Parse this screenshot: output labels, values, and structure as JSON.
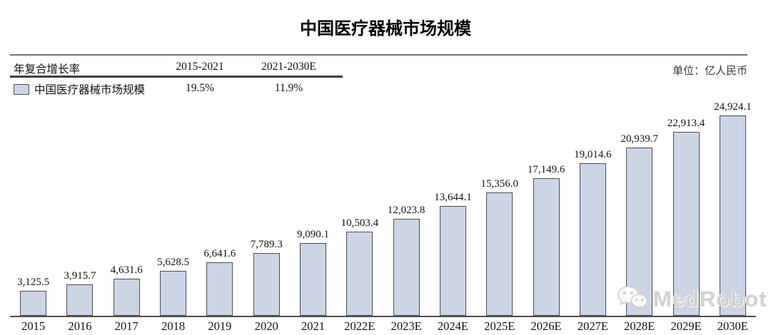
{
  "page": {
    "title": "中国医疗器械市场规模",
    "unit_label": "单位：亿人民币"
  },
  "cagr_table": {
    "row_header": "年复合增长率",
    "period1": "2015-2021",
    "period2": "2021-2030E",
    "series_label": "中国医疗器械市场规模",
    "cagr1": "19.5%",
    "cagr2": "11.9%"
  },
  "watermark": {
    "icon": "wechat-icon",
    "text": "MedRobot"
  },
  "chart_data": {
    "type": "bar",
    "title": "中国医疗器械市场规模",
    "unit": "亿人民币",
    "legend": [
      "中国医疗器械市场规模"
    ],
    "legend_position": "top-left",
    "grid": false,
    "ylim": [
      0,
      26000
    ],
    "value_label_position": "above-bar",
    "categories": [
      "2015",
      "2016",
      "2017",
      "2018",
      "2019",
      "2020",
      "2021",
      "2022E",
      "2023E",
      "2024E",
      "2025E",
      "2026E",
      "2027E",
      "2028E",
      "2029E",
      "2030E"
    ],
    "values": [
      3125.5,
      3915.7,
      4631.6,
      5628.5,
      6641.6,
      7789.3,
      9090.1,
      10503.4,
      12023.8,
      13644.1,
      15356.0,
      17149.6,
      19014.6,
      20939.7,
      22913.4,
      24924.1
    ],
    "value_labels": [
      "3,125.5",
      "3,915.7",
      "4,631.6",
      "5,628.5",
      "6,641.6",
      "7,789.3",
      "9,090.1",
      "10,503.4",
      "12,023.8",
      "13,644.1",
      "15,356.0",
      "17,149.6",
      "19,014.6",
      "20,939.7",
      "22,913.4",
      "24,924.1"
    ],
    "cagr": [
      {
        "period": "2015-2021",
        "value": "19.5%"
      },
      {
        "period": "2021-2030E",
        "value": "11.9%"
      }
    ],
    "bar_fill": "#cbd5e6",
    "bar_border": "#4d4d4d",
    "axis_color": "#4d4d4d"
  }
}
